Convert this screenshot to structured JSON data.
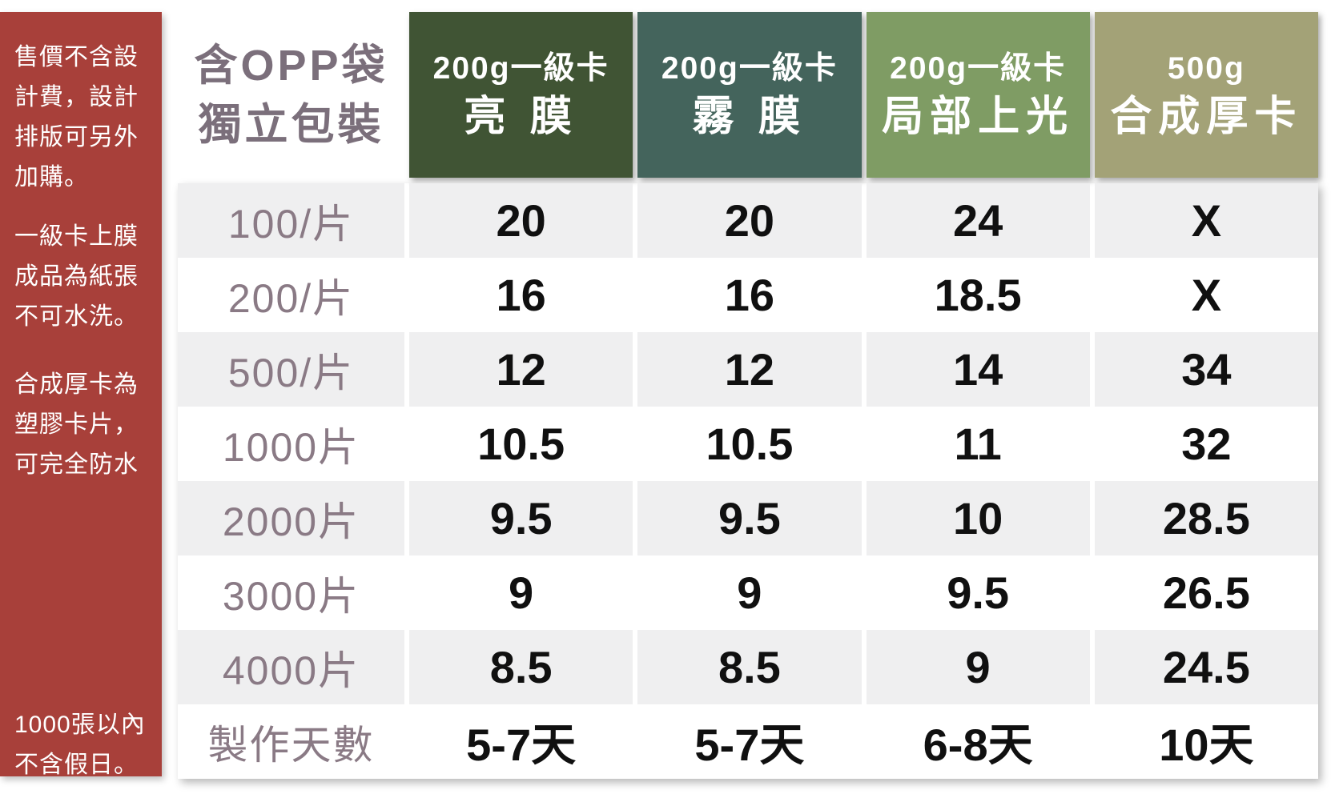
{
  "sidebar": {
    "background": "#a8403a",
    "text_color": "#ffffff",
    "notes": [
      "售價不含設計費，設計排版可另外加購。",
      "一級卡上膜成品為紙張不可水洗。",
      "合成厚卡為塑膠卡片，可完全防水",
      "1000張以內不含假日。"
    ]
  },
  "table": {
    "corner": {
      "line1": "含OPP袋",
      "line2": "獨立包裝",
      "text_color": "#7b6f7b"
    },
    "columns": [
      {
        "line1": "200g一級卡",
        "line2": "亮 膜",
        "color": "#405434"
      },
      {
        "line1": "200g一級卡",
        "line2": "霧 膜",
        "color": "#44645c"
      },
      {
        "line1": "200g一級卡",
        "line2": "局部上光",
        "color": "#7f9c64"
      },
      {
        "line1": "500g",
        "line2": "合成厚卡",
        "color": "#a3a277"
      }
    ],
    "stripe_color": "#efeff0",
    "label_text_color": "#8a7a85",
    "value_text_color": "#101010",
    "rows": [
      {
        "label": "100/片",
        "values": [
          "20",
          "20",
          "24",
          "X"
        ]
      },
      {
        "label": "200/片",
        "values": [
          "16",
          "16",
          "18.5",
          "X"
        ]
      },
      {
        "label": "500/片",
        "values": [
          "12",
          "12",
          "14",
          "34"
        ]
      },
      {
        "label": "1000片",
        "values": [
          "10.5",
          "10.5",
          "11",
          "32"
        ]
      },
      {
        "label": "2000片",
        "values": [
          "9.5",
          "9.5",
          "10",
          "28.5"
        ]
      },
      {
        "label": "3000片",
        "values": [
          "9",
          "9",
          "9.5",
          "26.5"
        ]
      },
      {
        "label": "4000片",
        "values": [
          "8.5",
          "8.5",
          "9",
          "24.5"
        ]
      },
      {
        "label": "製作天數",
        "values": [
          "5-7天",
          "5-7天",
          "6-8天",
          "10天"
        ]
      }
    ]
  },
  "chart_data": {
    "type": "table",
    "title": "含OPP袋獨立包裝",
    "columns": [
      "200g一級卡 亮膜",
      "200g一級卡 霧膜",
      "200g一級卡 局部上光",
      "500g 合成厚卡"
    ],
    "row_labels": [
      "100/片",
      "200/片",
      "500/片",
      "1000片",
      "2000片",
      "3000片",
      "4000片",
      "製作天數"
    ],
    "rows": [
      [
        "20",
        "20",
        "24",
        "X"
      ],
      [
        "16",
        "16",
        "18.5",
        "X"
      ],
      [
        "12",
        "12",
        "14",
        "34"
      ],
      [
        "10.5",
        "10.5",
        "11",
        "32"
      ],
      [
        "9.5",
        "9.5",
        "10",
        "28.5"
      ],
      [
        "9",
        "9",
        "9.5",
        "26.5"
      ],
      [
        "8.5",
        "8.5",
        "9",
        "24.5"
      ],
      [
        "5-7天",
        "5-7天",
        "6-8天",
        "10天"
      ]
    ],
    "annotations": [
      "售價不含設計費，設計排版可另外加購。",
      "一級卡上膜成品為紙張不可水洗。",
      "合成厚卡為塑膠卡片，可完全防水",
      "1000張以內不含假日。"
    ],
    "legend_position": "none",
    "grid": "striped-rows"
  }
}
